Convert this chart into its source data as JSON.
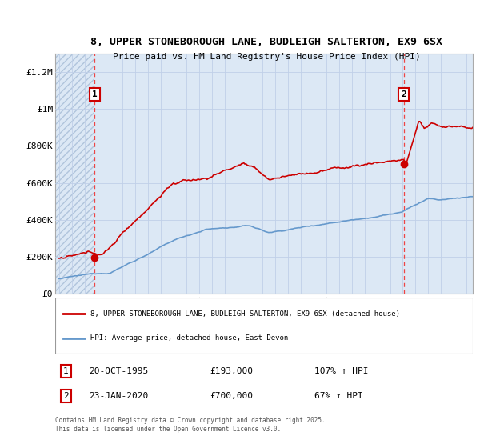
{
  "title_line1": "8, UPPER STONEBOROUGH LANE, BUDLEIGH SALTERTON, EX9 6SX",
  "title_line2": "Price paid vs. HM Land Registry's House Price Index (HPI)",
  "ylim": [
    0,
    1300000
  ],
  "xlim_start": 1992.7,
  "xlim_end": 2025.5,
  "yticks": [
    0,
    200000,
    400000,
    600000,
    800000,
    1000000,
    1200000
  ],
  "ytick_labels": [
    "£0",
    "£200K",
    "£400K",
    "£600K",
    "£800K",
    "£1M",
    "£1.2M"
  ],
  "background_color": "#ffffff",
  "plot_bg_color": "#dce8f5",
  "grid_color": "#c0d0e8",
  "hatch_area_end": 1995.7,
  "red_color": "#cc0000",
  "blue_color": "#6699cc",
  "vline_color": "#ee4444",
  "point1_x": 1995.8,
  "point1_y": 193000,
  "point2_x": 2020.07,
  "point2_y": 700000,
  "legend_label_red": "8, UPPER STONEBOROUGH LANE, BUDLEIGH SALTERTON, EX9 6SX (detached house)",
  "legend_label_blue": "HPI: Average price, detached house, East Devon",
  "annotation1_date": "20-OCT-1995",
  "annotation1_price": "£193,000",
  "annotation1_hpi": "107% ↑ HPI",
  "annotation2_date": "23-JAN-2020",
  "annotation2_price": "£700,000",
  "annotation2_hpi": "67% ↑ HPI",
  "footer": "Contains HM Land Registry data © Crown copyright and database right 2025.\nThis data is licensed under the Open Government Licence v3.0."
}
